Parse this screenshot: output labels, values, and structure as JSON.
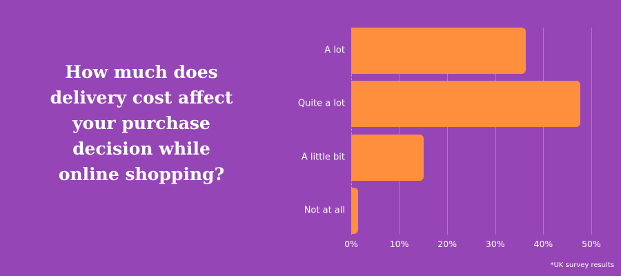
{
  "colors": {
    "background": "#9545b5",
    "bar": "#ff8f3d",
    "text": "#ffffff"
  },
  "question": {
    "lines": [
      "How much does",
      "delivery cost affect",
      "your purchase",
      "decision while",
      "online shopping?"
    ]
  },
  "footnote": "*UK survey results",
  "chart_data": {
    "type": "bar",
    "orientation": "horizontal",
    "title": "How much does delivery cost affect your purchase decision while online shopping?",
    "categories": [
      "A lot",
      "Quite a lot",
      "A little bit",
      "Not at all"
    ],
    "values": [
      36.3,
      47.7,
      15.1,
      1.4
    ],
    "unit": "%",
    "xlabel": "",
    "ylabel": "",
    "xlim": [
      0,
      50
    ],
    "x_ticks": [
      "0%",
      "10%",
      "20%",
      "30%",
      "40%",
      "50%"
    ],
    "grid": true,
    "legend": null,
    "annotation": "*UK survey results"
  }
}
